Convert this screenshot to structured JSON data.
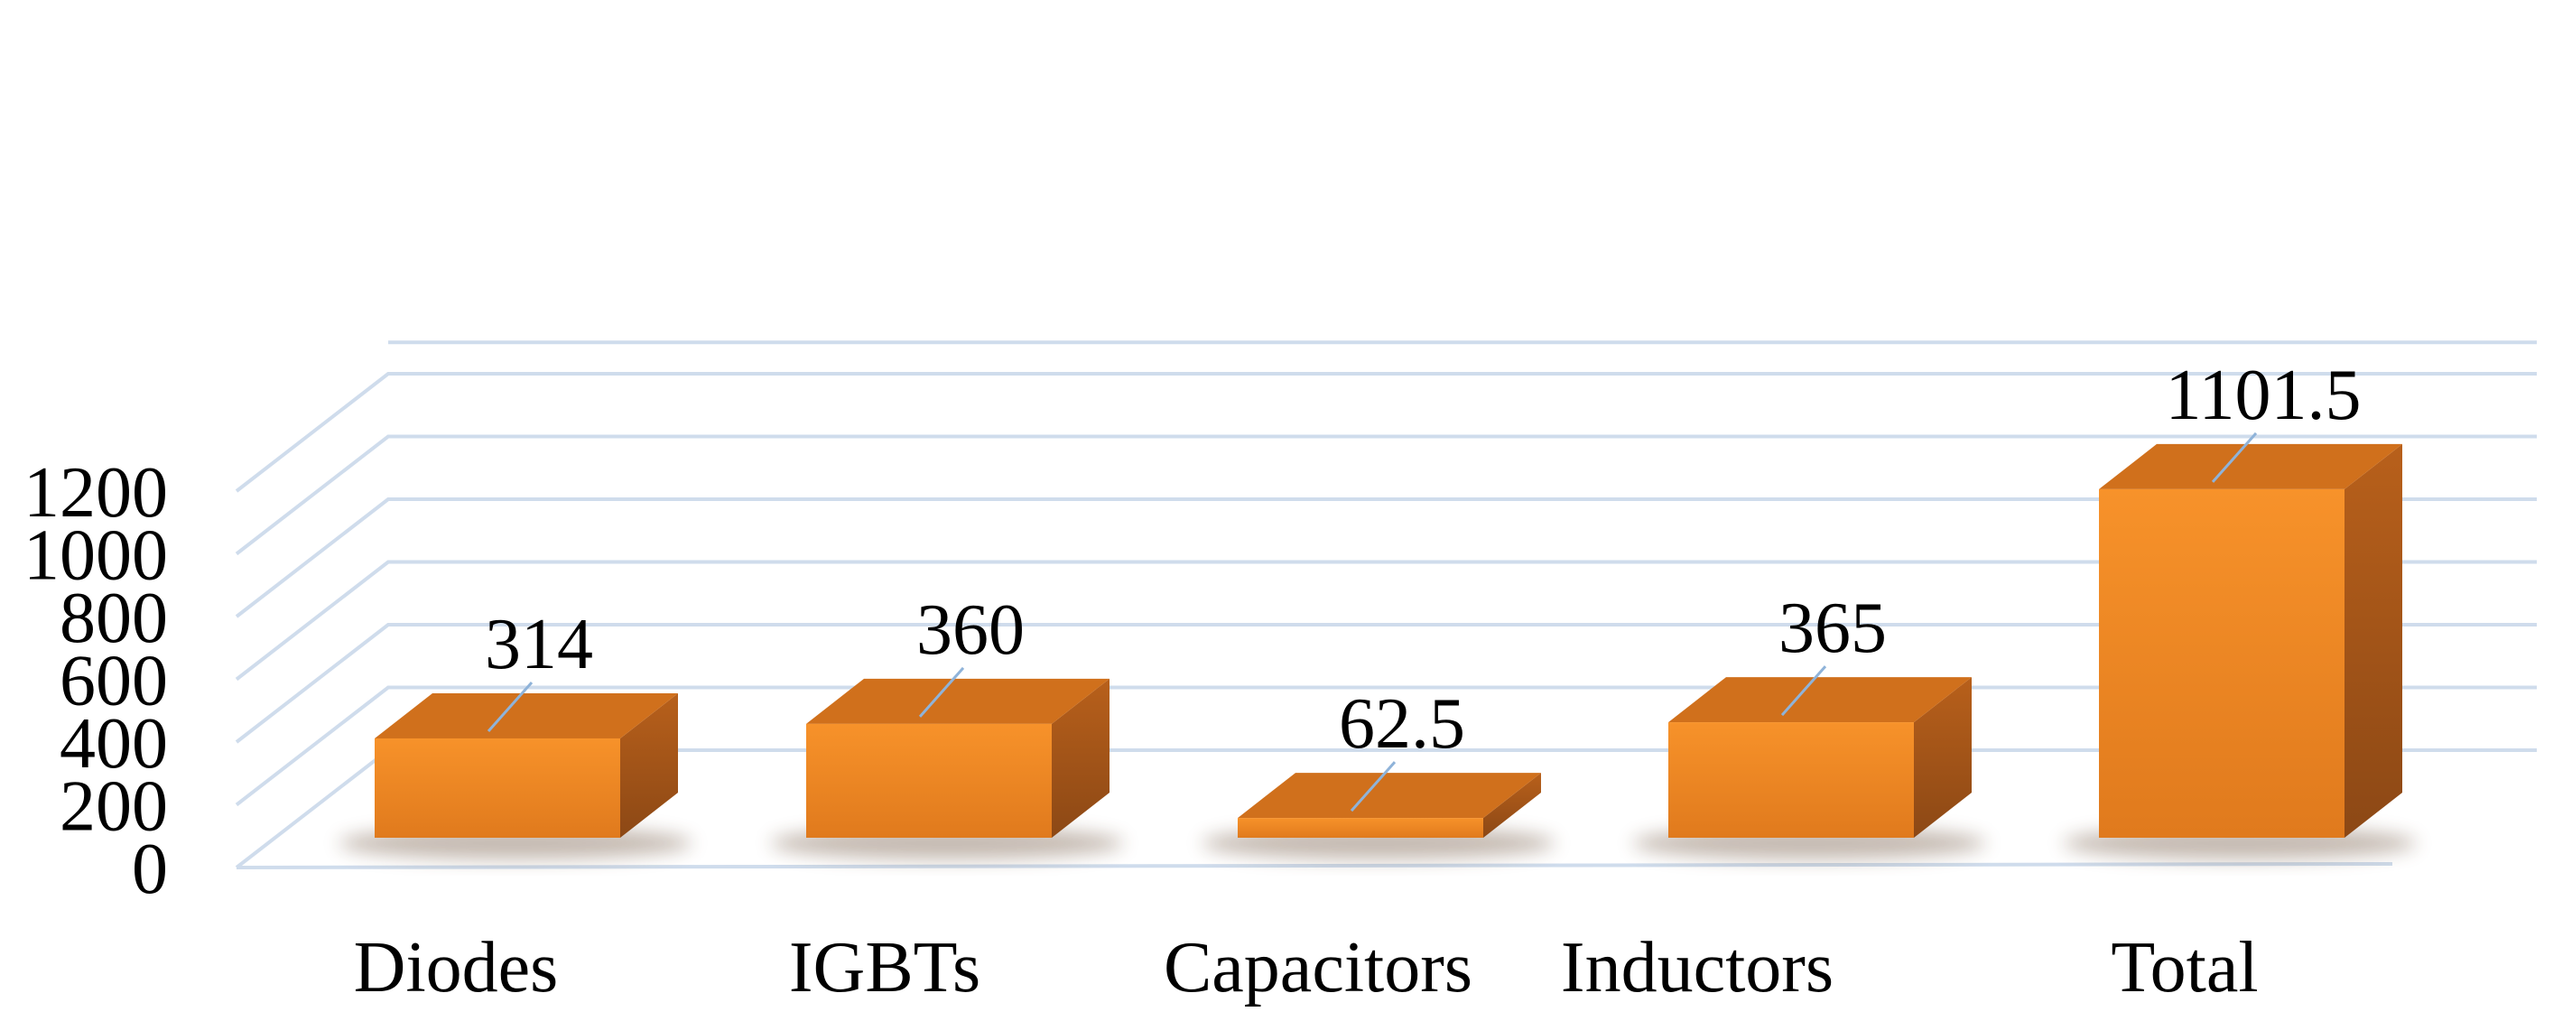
{
  "chart_data": {
    "type": "bar",
    "style": "3d-column",
    "title": "",
    "xlabel": "",
    "ylabel": "",
    "categories": [
      "Diodes",
      "IGBTs",
      "Capacitors",
      "Inductors",
      "Total"
    ],
    "values": [
      314,
      360,
      62.5,
      365,
      1101.5
    ],
    "data_labels": [
      "314",
      "360",
      "62.5",
      "365",
      "1101.5"
    ],
    "yticks": [
      "0",
      "200",
      "400",
      "600",
      "800",
      "1000",
      "1200"
    ],
    "ylim": [
      0,
      1300
    ],
    "grid": true,
    "legend": "none",
    "colors": {
      "bar_front": "#f28a24",
      "bar_top": "#d0701c",
      "bar_side": "#a7571a",
      "grid": "#cfdcec",
      "leader": "#8fb3d9"
    }
  }
}
